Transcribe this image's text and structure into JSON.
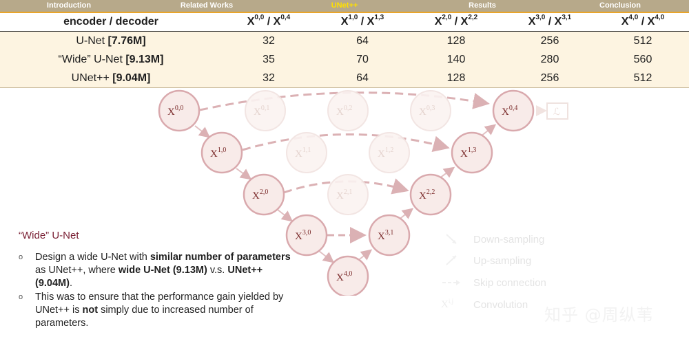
{
  "nav": {
    "tabs": [
      {
        "label": "Introduction",
        "active": false
      },
      {
        "label": "Related Works",
        "active": false
      },
      {
        "label": "UNet++",
        "active": true
      },
      {
        "label": "Results",
        "active": false
      },
      {
        "label": "Conclusion",
        "active": false
      }
    ]
  },
  "table": {
    "header_label": "encoder / decoder",
    "columns": [
      {
        "a": "X",
        "a_sup": "0,0",
        "b": "X",
        "b_sup": "0,4"
      },
      {
        "a": "X",
        "a_sup": "1,0",
        "b": "X",
        "b_sup": "1,3"
      },
      {
        "a": "X",
        "a_sup": "2,0",
        "b": "X",
        "b_sup": "2,2"
      },
      {
        "a": "X",
        "a_sup": "3,0",
        "b": "X",
        "b_sup": "3,1"
      },
      {
        "a": "X",
        "a_sup": "4,0",
        "b": "X",
        "b_sup": "4,0"
      }
    ],
    "rows": [
      {
        "name": "U-Net ",
        "params": "[7.76M]",
        "values": [
          "32",
          "64",
          "128",
          "256",
          "512"
        ]
      },
      {
        "name": "“Wide” U-Net ",
        "params": "[9.13M]",
        "values": [
          "35",
          "70",
          "140",
          "280",
          "560"
        ]
      },
      {
        "name": "UNet++ ",
        "params": "[9.04M]",
        "values": [
          "32",
          "64",
          "128",
          "256",
          "512"
        ]
      }
    ]
  },
  "diagram": {
    "nodes": {
      "n00": {
        "base": "X",
        "sup": "0,0"
      },
      "n01": {
        "base": "X",
        "sup": "0,1"
      },
      "n02": {
        "base": "X",
        "sup": "0,2"
      },
      "n03": {
        "base": "X",
        "sup": "0,3"
      },
      "n04": {
        "base": "X",
        "sup": "0,4"
      },
      "n10": {
        "base": "X",
        "sup": "1,0"
      },
      "n11": {
        "base": "X",
        "sup": "1,1"
      },
      "n12": {
        "base": "X",
        "sup": "1,2"
      },
      "n13": {
        "base": "X",
        "sup": "1,3"
      },
      "n20": {
        "base": "X",
        "sup": "2,0"
      },
      "n21": {
        "base": "X",
        "sup": "2,1"
      },
      "n22": {
        "base": "X",
        "sup": "2,2"
      },
      "n30": {
        "base": "X",
        "sup": "3,0"
      },
      "n31": {
        "base": "X",
        "sup": "3,1"
      },
      "n40": {
        "base": "X",
        "sup": "4,0"
      }
    },
    "loss_label": "ℒ",
    "colors": {
      "node_stroke": "#d9a9ad",
      "node_fill": "#f5e7e4",
      "arrow": "#dbb1b4",
      "faint": "#f1e3e0"
    }
  },
  "legend": {
    "items": [
      {
        "label": "Down-sampling",
        "icon": "down-arrow-icon"
      },
      {
        "label": "Up-sampling",
        "icon": "up-arrow-icon"
      },
      {
        "label": "Skip connection",
        "icon": "dashed-arrow-icon"
      },
      {
        "label": "Convolution",
        "icon": "convolution-node-icon",
        "glyph": "X",
        "glyph_sup": "i,j"
      }
    ]
  },
  "explain": {
    "title": "“Wide” U-Net",
    "bullet_glyph": "o",
    "item1": {
      "t1": "Design a wide U-Net with ",
      "b1": "similar number of parameters",
      "t2": " as UNet++, where ",
      "b2": "wide U-Net (9.13M)",
      "t3": " v.s. ",
      "b3": "UNet++ (9.04M)",
      "t4": "."
    },
    "item2": {
      "t1": "This was to ensure that the performance gain yielded by UNet++ is ",
      "b1": "not",
      "t2": " simply due to increased number of parameters."
    }
  },
  "watermark": "知乎 @周纵苇"
}
